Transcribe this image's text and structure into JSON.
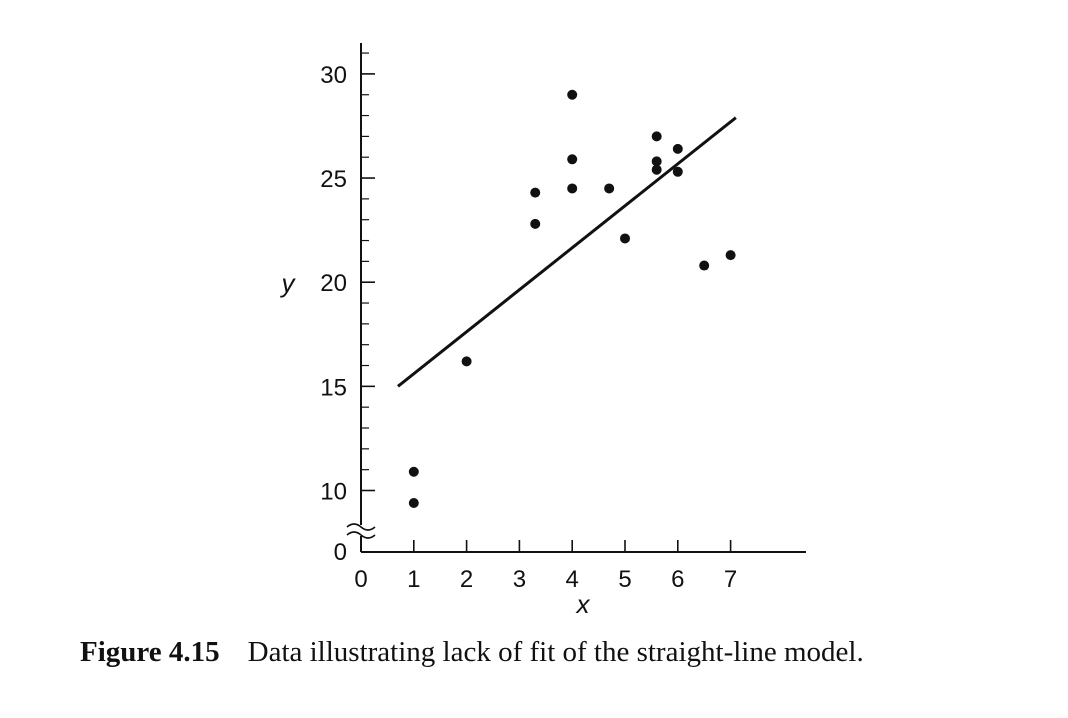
{
  "chart_data": {
    "type": "scatter",
    "xlabel": "x",
    "ylabel": "y",
    "xlim": [
      0,
      8
    ],
    "ylim_display": [
      0,
      31.5
    ],
    "axis_break": {
      "axis": "y",
      "between": [
        0,
        10
      ]
    },
    "x_ticks": [
      0,
      1,
      2,
      3,
      4,
      5,
      6,
      7
    ],
    "y_ticks": [
      10,
      15,
      20,
      25,
      30
    ],
    "y_zero_label": "0",
    "y_minor_step": 1,
    "points": [
      {
        "x": 1.0,
        "y": 10.9
      },
      {
        "x": 1.0,
        "y": 9.4
      },
      {
        "x": 2.0,
        "y": 16.2
      },
      {
        "x": 3.3,
        "y": 24.3
      },
      {
        "x": 3.3,
        "y": 22.8
      },
      {
        "x": 4.0,
        "y": 29.0
      },
      {
        "x": 4.0,
        "y": 25.9
      },
      {
        "x": 4.0,
        "y": 24.5
      },
      {
        "x": 4.7,
        "y": 24.5
      },
      {
        "x": 5.0,
        "y": 22.1
      },
      {
        "x": 5.6,
        "y": 27.0
      },
      {
        "x": 5.6,
        "y": 25.8
      },
      {
        "x": 5.6,
        "y": 25.4
      },
      {
        "x": 6.0,
        "y": 26.4
      },
      {
        "x": 6.0,
        "y": 25.3
      },
      {
        "x": 6.5,
        "y": 20.8
      },
      {
        "x": 7.0,
        "y": 21.3
      }
    ],
    "fit_line": {
      "x0": 0.7,
      "y0": 15.0,
      "x1": 7.1,
      "y1": 27.9
    },
    "grid": false,
    "legend": "none"
  },
  "caption": {
    "figure_number": "Figure 4.15",
    "text": "Data illustrating lack of fit of the straight-line model."
  }
}
